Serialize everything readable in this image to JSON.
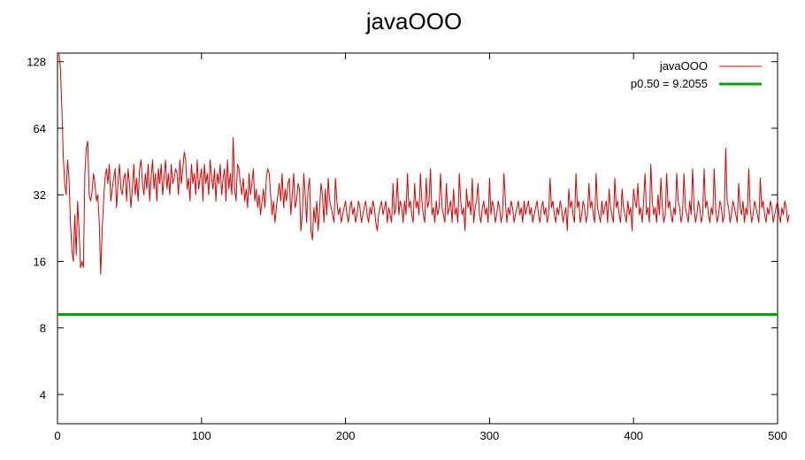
{
  "chart_data": {
    "type": "line",
    "title": "javaOOO",
    "xlabel": "",
    "ylabel": "",
    "xlim": [
      0,
      500
    ],
    "ylim": [
      2.95,
      140
    ],
    "yscale": "log2",
    "x_ticks": [
      0,
      100,
      200,
      300,
      400,
      500
    ],
    "y_ticks": [
      4,
      8,
      16,
      32,
      64,
      128
    ],
    "grid": false,
    "legend_position": "top-right",
    "series": [
      {
        "name": "javaOOO",
        "color": "#dd0000",
        "style": "thin-line",
        "x_start": 1,
        "x_step": 1,
        "values": [
          140,
          120,
          80,
          48,
          36,
          32,
          46,
          38,
          24,
          18,
          16,
          26,
          17,
          30,
          22,
          15,
          16,
          15,
          40,
          52,
          56,
          32,
          30,
          33,
          40,
          36,
          30,
          32,
          24,
          14,
          22,
          30,
          38,
          42,
          36,
          44,
          30,
          34,
          38,
          42,
          28,
          36,
          44,
          34,
          32,
          38,
          40,
          30,
          42,
          36,
          28,
          34,
          44,
          32,
          38,
          30,
          42,
          46,
          36,
          32,
          40,
          34,
          44,
          30,
          38,
          46,
          34,
          40,
          30,
          42,
          36,
          44,
          32,
          38,
          46,
          34,
          40,
          32,
          44,
          36,
          38,
          42,
          40,
          32,
          46,
          36,
          42,
          50,
          46,
          34,
          38,
          30,
          44,
          36,
          40,
          32,
          46,
          34,
          38,
          42,
          30,
          44,
          36,
          40,
          32,
          46,
          38,
          34,
          42,
          30,
          40,
          36,
          44,
          32,
          38,
          42,
          30,
          46,
          34,
          40,
          32,
          58,
          34,
          30,
          44,
          42,
          36,
          32,
          38,
          30,
          34,
          28,
          40,
          32,
          36,
          42,
          30,
          34,
          28,
          32,
          26,
          30,
          34,
          28,
          38,
          42,
          40,
          32,
          26,
          30,
          24,
          28,
          32,
          36,
          30,
          40,
          28,
          34,
          30,
          36,
          38,
          26,
          32,
          40,
          28,
          30,
          36,
          34,
          22,
          26,
          40,
          32,
          24,
          34,
          38,
          22,
          20,
          28,
          24,
          30,
          22,
          28,
          36,
          32,
          24,
          34,
          26,
          38,
          30,
          28,
          26,
          24,
          38,
          30,
          26,
          28,
          24,
          26,
          28,
          30,
          26,
          24,
          28,
          30,
          26,
          28,
          24,
          26,
          30,
          28,
          24,
          26,
          28,
          30,
          26,
          24,
          28,
          26,
          30,
          28,
          24,
          22,
          26,
          28,
          30,
          26,
          28,
          30,
          24,
          28,
          26,
          24,
          36,
          26,
          28,
          38,
          26,
          30,
          28,
          24,
          30,
          26,
          40,
          28,
          30,
          26,
          24,
          36,
          28,
          30,
          26,
          40,
          30,
          26,
          24,
          38,
          28,
          30,
          42,
          26,
          28,
          24,
          30,
          26,
          28,
          40,
          28,
          26,
          24,
          36,
          26,
          28,
          30,
          24,
          34,
          26,
          28,
          24,
          40,
          30,
          26,
          28,
          22,
          34,
          28,
          30,
          26,
          38,
          24,
          28,
          30,
          36,
          26,
          24,
          28,
          30,
          26,
          28,
          24,
          38,
          26,
          30,
          28,
          24,
          26,
          30,
          28,
          24,
          26,
          40,
          30,
          24,
          28,
          26,
          30,
          28,
          24,
          26,
          28,
          30,
          26,
          28,
          24,
          30,
          26,
          28,
          30,
          26,
          28,
          24,
          26,
          28,
          30,
          26,
          24,
          28,
          30,
          26,
          28,
          24,
          26,
          38,
          28,
          30,
          26,
          24,
          28,
          26,
          30,
          28,
          24,
          26,
          28,
          22,
          34,
          28,
          30,
          26,
          24,
          40,
          28,
          30,
          24,
          26,
          30,
          28,
          24,
          26,
          36,
          28,
          30,
          26,
          24,
          40,
          28,
          26,
          24,
          30,
          26,
          28,
          30,
          24,
          34,
          28,
          26,
          24,
          38,
          28,
          30,
          26,
          24,
          34,
          28,
          26,
          24,
          30,
          26,
          28,
          22,
          34,
          30,
          28,
          36,
          26,
          28,
          24,
          30,
          40,
          26,
          28,
          24,
          44,
          30,
          26,
          28,
          24,
          32,
          26,
          38,
          28,
          24,
          26,
          40,
          28,
          30,
          26,
          24,
          28,
          26,
          40,
          30,
          28,
          24,
          26,
          40,
          28,
          26,
          24,
          30,
          26,
          42,
          28,
          24,
          26,
          30,
          28,
          24,
          26,
          42,
          28,
          30,
          26,
          24,
          28,
          26,
          42,
          28,
          24,
          26,
          30,
          28,
          24,
          26,
          52,
          30,
          28,
          24,
          26,
          30,
          28,
          26,
          24,
          36,
          28,
          26,
          30,
          24,
          28,
          26,
          42,
          28,
          24,
          26,
          30,
          28,
          26,
          24,
          38,
          28,
          30,
          26,
          24,
          28,
          26,
          30,
          28,
          24,
          26,
          28,
          30,
          26,
          24,
          28,
          26,
          30,
          28,
          24,
          26
        ]
      },
      {
        "name": "p0.50 = 9.2055",
        "color": "#00aa00",
        "style": "thick-line",
        "constant": 9.2055
      }
    ]
  }
}
